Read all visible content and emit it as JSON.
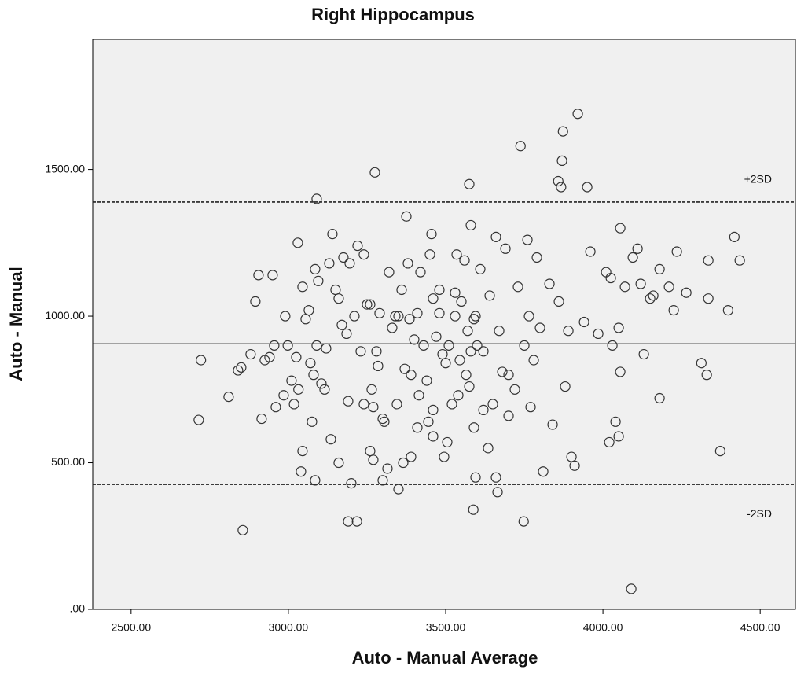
{
  "chart_data": {
    "type": "scatter",
    "title": "Right Hippocampus",
    "x_label": "Auto - Manual Average",
    "y_label": "Auto - Manual",
    "xlim": [
      2378,
      4612
    ],
    "ylim": [
      0,
      1944
    ],
    "xticks": [
      {
        "value": 2500,
        "label": "2500.00"
      },
      {
        "value": 3000,
        "label": "3000.00"
      },
      {
        "value": 3500,
        "label": "3500.00"
      },
      {
        "value": 4000,
        "label": "4000.00"
      },
      {
        "value": 4500,
        "label": "4500.00"
      }
    ],
    "yticks": [
      {
        "value": 0,
        "label": ".00"
      },
      {
        "value": 500,
        "label": "500.00"
      },
      {
        "value": 1000,
        "label": "1000.00"
      },
      {
        "value": 1500,
        "label": "1500.00"
      }
    ],
    "color": "#333333",
    "background": "#f0f0f0",
    "reference_lines": [
      {
        "value": 1389,
        "style": "dashed",
        "label": "+2SD"
      },
      {
        "value": 906,
        "style": "solid"
      },
      {
        "value": 426,
        "style": "dashed",
        "label": "-2SD"
      }
    ],
    "x": [
      2715,
      2722,
      2810,
      2840,
      2850,
      2855,
      2880,
      2895,
      2905,
      2915,
      2925,
      2940,
      2950,
      2955,
      2960,
      2985,
      2990,
      2998,
      3010,
      3018,
      3025,
      3032,
      3030,
      3045,
      3040,
      3045,
      3055,
      3065,
      3070,
      3075,
      3080,
      3085,
      3090,
      3085,
      3090,
      3095,
      3105,
      3115,
      3120,
      3130,
      3140,
      3135,
      3150,
      3160,
      3170,
      3160,
      3175,
      3185,
      3190,
      3195,
      3200,
      3190,
      3218,
      3210,
      3220,
      3230,
      3240,
      3240,
      3250,
      3260,
      3265,
      3270,
      3270,
      3260,
      3280,
      3285,
      3275,
      3300,
      3305,
      3300,
      3315,
      3320,
      3330,
      3340,
      3345,
      3350,
      3360,
      3370,
      3365,
      3380,
      3385,
      3375,
      3390,
      3400,
      3410,
      3415,
      3390,
      3420,
      3430,
      3440,
      3450,
      3460,
      3470,
      3445,
      3480,
      3490,
      3460,
      3500,
      3455,
      3510,
      3520,
      3495,
      3530,
      3535,
      3545,
      3505,
      3550,
      3560,
      3565,
      3570,
      3575,
      3575,
      3580,
      3580,
      3590,
      3595,
      3590,
      3588,
      3595,
      3600,
      3610,
      3635,
      3620,
      3640,
      3660,
      3650,
      3660,
      3665,
      3670,
      3680,
      3690,
      3738,
      3748,
      3730,
      3720,
      3700,
      3750,
      3760,
      3765,
      3780,
      3770,
      3790,
      3810,
      3858,
      3867,
      3873,
      3870,
      3920,
      3950,
      3800,
      3830,
      3840,
      3900,
      3910,
      3860,
      3880,
      3890,
      3960,
      3940,
      3985,
      4010,
      4025,
      4030,
      4020,
      4040,
      4050,
      4055,
      4055,
      4050,
      4070,
      4095,
      4110,
      4120,
      4130,
      4150,
      4160,
      4180,
      4180,
      4210,
      4225,
      4235,
      4265,
      4313,
      4330,
      4335,
      4335,
      4373,
      4398,
      4418,
      4435,
      4090,
      3530,
      3480,
      3410,
      3350,
      3290,
      3540,
      3460,
      3620,
      3700
    ],
    "values": [
      646,
      850,
      725,
      815,
      825,
      270,
      870,
      1050,
      1140,
      650,
      850,
      860,
      1140,
      900,
      690,
      730,
      1000,
      900,
      780,
      700,
      860,
      750,
      1250,
      1100,
      470,
      540,
      990,
      1020,
      840,
      640,
      800,
      1160,
      900,
      440,
      1400,
      1120,
      770,
      750,
      890,
      1180,
      1280,
      580,
      1090,
      1060,
      970,
      500,
      1200,
      940,
      710,
      1180,
      430,
      300,
      300,
      1000,
      1240,
      880,
      700,
      1210,
      1040,
      1040,
      750,
      690,
      510,
      540,
      880,
      830,
      1490,
      650,
      640,
      440,
      480,
      1150,
      960,
      1000,
      700,
      410,
      1090,
      820,
      500,
      1180,
      990,
      1340,
      800,
      920,
      620,
      730,
      520,
      1150,
      900,
      780,
      1210,
      1060,
      930,
      640,
      1010,
      870,
      590,
      840,
      1280,
      900,
      700,
      520,
      1080,
      1210,
      850,
      570,
      1050,
      1190,
      800,
      950,
      1450,
      760,
      880,
      1310,
      990,
      1000,
      620,
      340,
      450,
      900,
      1160,
      550,
      880,
      1070,
      1270,
      700,
      450,
      400,
      950,
      810,
      1230,
      1580,
      300,
      1100,
      750,
      660,
      900,
      1260,
      1000,
      850,
      690,
      1200,
      470,
      1460,
      1440,
      1630,
      1530,
      1690,
      1440,
      960,
      1110,
      630,
      520,
      490,
      1050,
      760,
      950,
      1220,
      980,
      940,
      1150,
      1130,
      900,
      570,
      640,
      960,
      1300,
      810,
      590,
      1100,
      1200,
      1230,
      1110,
      870,
      1060,
      1070,
      720,
      1160,
      1100,
      1020,
      1220,
      1080,
      840,
      800,
      1060,
      1190,
      540,
      1020,
      1270,
      1190,
      70,
      1000,
      1090,
      1010,
      1000,
      1010,
      730,
      680,
      680,
      800
    ]
  }
}
